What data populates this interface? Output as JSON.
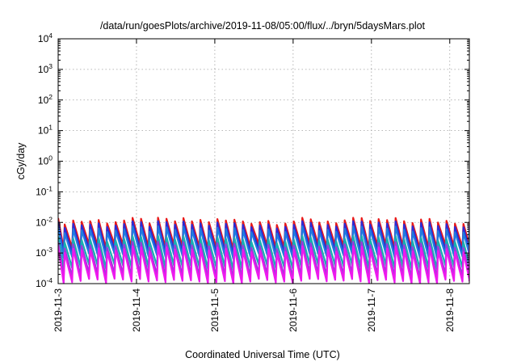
{
  "chart_data": {
    "type": "line",
    "title": "/data/run/goesPlots/archive/2019-11-08/05:00/flux/../bryn/5daysMars.plot",
    "xlabel": "Coordinated Universal Time (UTC)",
    "ylabel": "cGy/day",
    "yscale": "log",
    "ylim": [
      0.0001,
      10000
    ],
    "xlim": [
      "2019-11-03T00:00",
      "2019-11-08T06:00"
    ],
    "grid": true,
    "x_ticks": [
      "2019-11-3",
      "2019-11-4",
      "2019-11-5",
      "2019-11-6",
      "2019-11-7",
      "2019-11-8"
    ],
    "y_ticks": [
      {
        "base": "10",
        "exp": "-4"
      },
      {
        "base": "10",
        "exp": "-3"
      },
      {
        "base": "10",
        "exp": "-2"
      },
      {
        "base": "10",
        "exp": "-1"
      },
      {
        "base": "10",
        "exp": "0"
      },
      {
        "base": "10",
        "exp": "1"
      },
      {
        "base": "10",
        "exp": "2"
      },
      {
        "base": "10",
        "exp": "3"
      },
      {
        "base": "10",
        "exp": "4"
      }
    ],
    "sawtooth_period_hours": 2.6,
    "series": [
      {
        "color": "#e8191a",
        "peak": 0.011,
        "trough": 0.0016
      },
      {
        "color": "#2b2bd6",
        "peak": 0.0085,
        "trough": 0.0011
      },
      {
        "color": "#1e7be0",
        "peak": 0.0058,
        "trough": 0.0008
      },
      {
        "color": "#18b0b0",
        "peak": 0.0028,
        "trough": 0.00035
      },
      {
        "color": "#9a3ad8",
        "peak": 0.0018,
        "trough": 0.00018
      },
      {
        "color": "#ee18ee",
        "peak": 0.0013,
        "trough": 0.00012
      }
    ]
  }
}
